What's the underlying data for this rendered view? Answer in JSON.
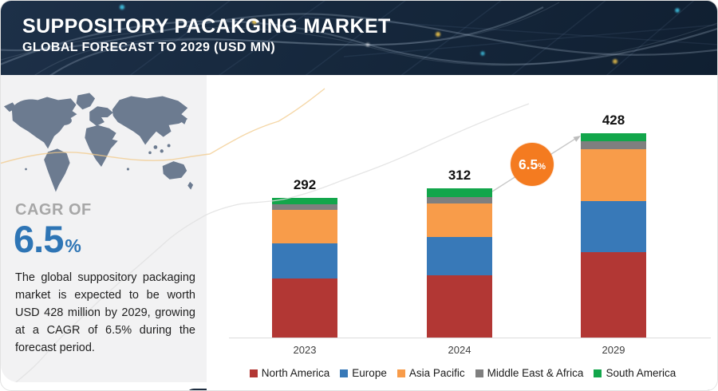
{
  "header": {
    "title": "SUPPOSITORY PACAKGING MARKET",
    "subtitle": "GLOBAL FORECAST TO 2029 (USD MN)"
  },
  "sidebar": {
    "cagr_label": "CAGR OF",
    "cagr_value": "6.5",
    "cagr_unit": "%",
    "description": "The global suppository packaging market is expected to be worth USD 428 million by 2029, growing at a CAGR of 6.5% during the forecast period."
  },
  "annotation": {
    "growth_value": "6.5",
    "growth_unit": "%"
  },
  "colors": {
    "header_navy": "#16283d",
    "accent_orange": "#f47b20",
    "cagr_blue": "#2e75b5",
    "map_slate": "#6c7b90",
    "axis_gray": "#dcdcdc"
  },
  "chart_data": {
    "type": "bar",
    "stacked": true,
    "title": "Suppository Packaging Market — Global Forecast to 2029",
    "unit": "USD MN",
    "categories": [
      "2023",
      "2024",
      "2029"
    ],
    "totals": [
      292,
      312,
      428
    ],
    "series": [
      {
        "name": "North America",
        "color": "#b23734",
        "values": [
          124,
          131,
          179
        ]
      },
      {
        "name": "Europe",
        "color": "#3879b8",
        "values": [
          74,
          79,
          107
        ]
      },
      {
        "name": "Asia Pacific",
        "color": "#f89c4a",
        "values": [
          69,
          71,
          109
        ]
      },
      {
        "name": "Middle East & Africa",
        "color": "#7f7f7f",
        "values": [
          12,
          14,
          17
        ]
      },
      {
        "name": "South America",
        "color": "#12a64b",
        "values": [
          13,
          17,
          16
        ]
      }
    ],
    "legend_position": "bottom",
    "grid": false,
    "cagr_annotation": "6.5%"
  }
}
